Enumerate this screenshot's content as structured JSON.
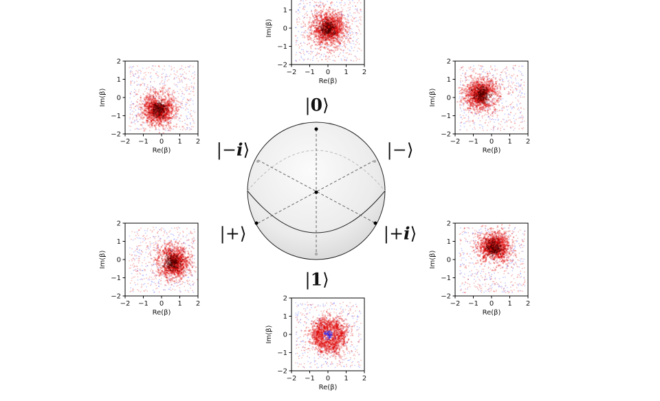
{
  "figure": {
    "xlabel": "Re(β)",
    "ylabel": "Im(β)",
    "ticks": [
      "−2",
      "−1",
      "0",
      "1",
      "2"
    ],
    "tick_values": [
      -2,
      -1,
      0,
      1,
      2
    ],
    "range": [
      -2,
      2
    ],
    "colors": {
      "density": "#dd0000",
      "negative": "#2030ff",
      "sphere_edge": "#222222"
    }
  },
  "panels": [
    {
      "id": "zero",
      "state": "|0⟩",
      "distribution": "centered blob at origin",
      "center": [
        0,
        0
      ]
    },
    {
      "id": "minus_i",
      "state": "|−i⟩",
      "distribution": "crescent",
      "center": [
        -0.2,
        -0.6
      ]
    },
    {
      "id": "minus",
      "state": "|−⟩",
      "distribution": "crescent",
      "center": [
        -0.6,
        0.2
      ]
    },
    {
      "id": "plus",
      "state": "|+⟩",
      "distribution": "crescent",
      "center": [
        0.6,
        -0.1
      ]
    },
    {
      "id": "plus_i",
      "state": "|+i⟩",
      "distribution": "crescent",
      "center": [
        0.1,
        0.7
      ]
    },
    {
      "id": "one",
      "state": "|1⟩",
      "distribution": "ring around origin",
      "center": [
        0,
        0
      ]
    }
  ],
  "kets": {
    "zero": {
      "open": "|",
      "sym": "0",
      "close": "⟩"
    },
    "one": {
      "open": "|",
      "sym": "1",
      "close": "⟩"
    },
    "minus_i": {
      "open": "|−",
      "sym": "i",
      "close": "⟩"
    },
    "minus": {
      "open": "|−",
      "sym": "",
      "close": "⟩"
    },
    "plus": {
      "open": "|+",
      "sym": "",
      "close": "⟩"
    },
    "plus_i": {
      "open": "|+",
      "sym": "i",
      "close": "⟩"
    }
  }
}
